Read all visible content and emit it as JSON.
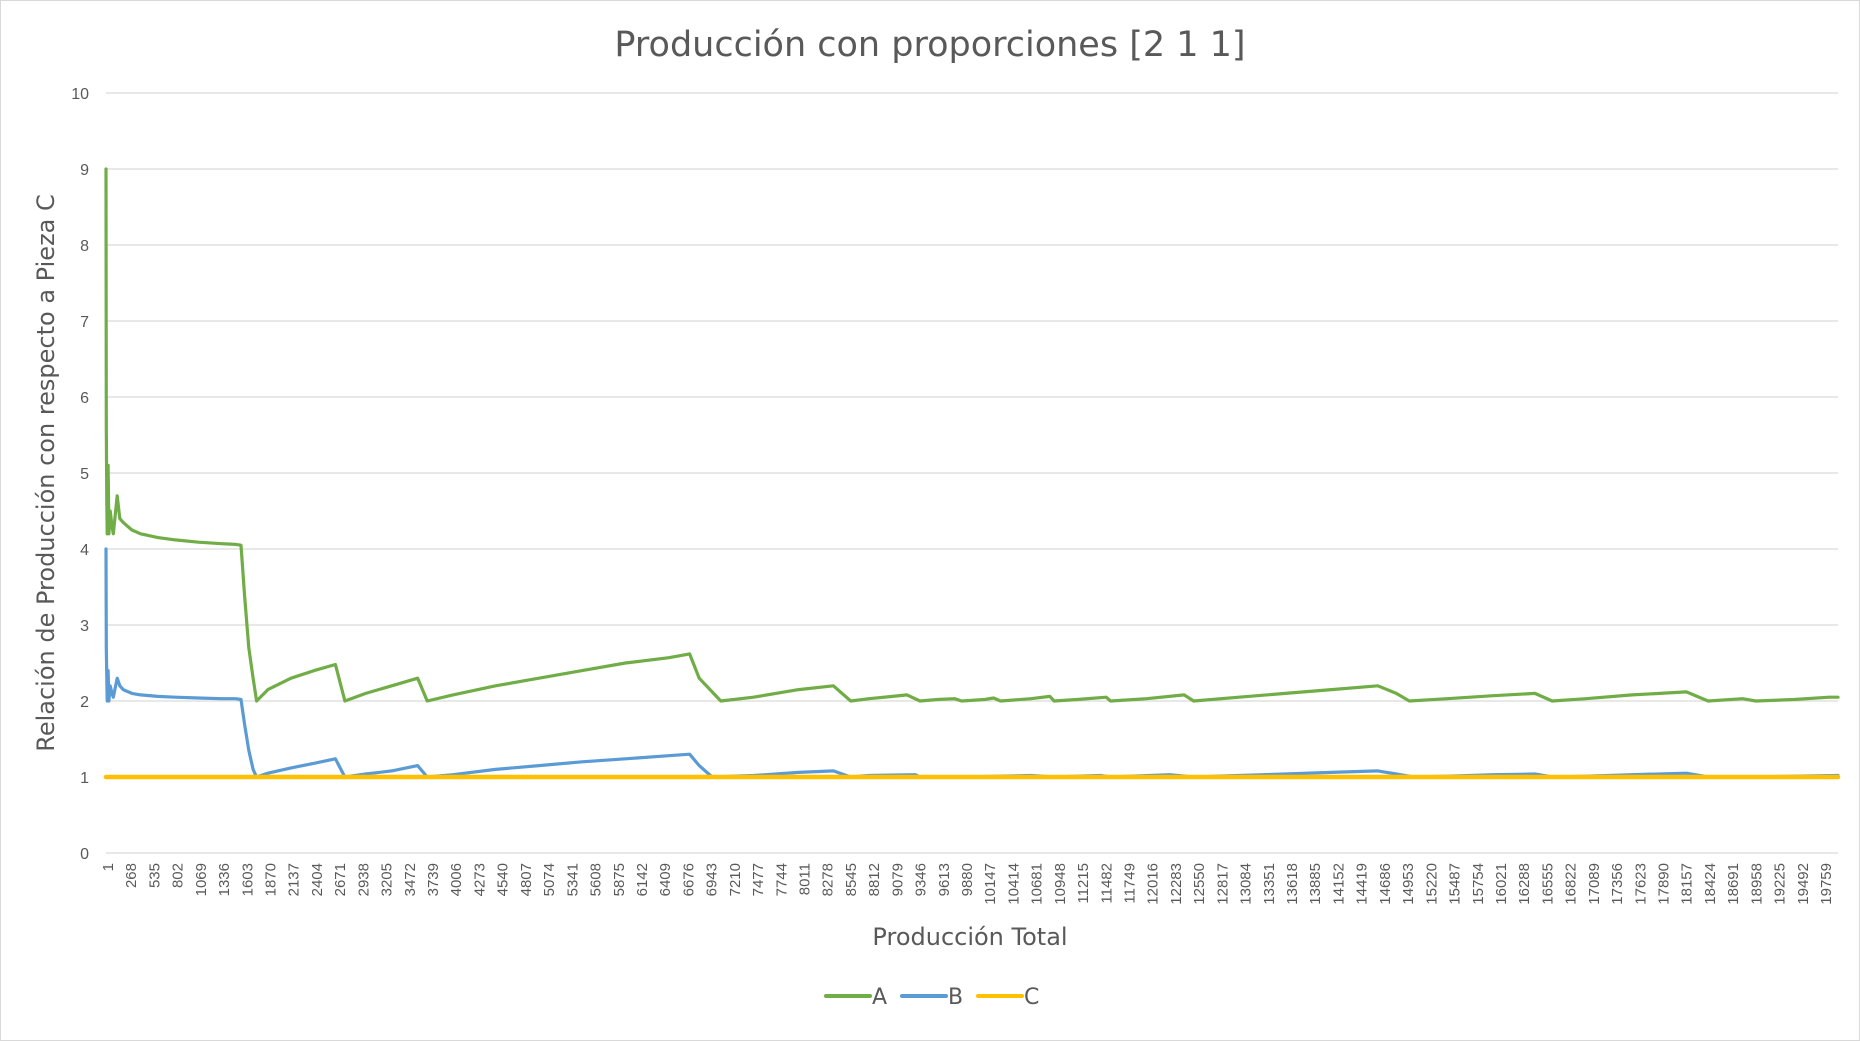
{
  "chart_data": {
    "type": "line",
    "title": "Producción con proporciones [2 1 1]",
    "xlabel": "Producción Total",
    "ylabel": "Relación de Producción con respecto a Pieza C",
    "ylim": [
      0,
      10
    ],
    "yticks": [
      "0",
      "1",
      "2",
      "3",
      "4",
      "5",
      "6",
      "7",
      "8",
      "9",
      "10"
    ],
    "xlim": [
      1,
      20000
    ],
    "xticks": [
      "1",
      "268",
      "535",
      "802",
      "1069",
      "1336",
      "1603",
      "1870",
      "2137",
      "2404",
      "2671",
      "2938",
      "3205",
      "3472",
      "3739",
      "4006",
      "4273",
      "4540",
      "4807",
      "5074",
      "5341",
      "5608",
      "5875",
      "6142",
      "6409",
      "6676",
      "6943",
      "7210",
      "7477",
      "7744",
      "8011",
      "8278",
      "8545",
      "8812",
      "9079",
      "9346",
      "9613",
      "9880",
      "10147",
      "10414",
      "10681",
      "10948",
      "11215",
      "11482",
      "11749",
      "12016",
      "12283",
      "12550",
      "12817",
      "13084",
      "13351",
      "13618",
      "13885",
      "14152",
      "14419",
      "14686",
      "14953",
      "15220",
      "15487",
      "15754",
      "16021",
      "16288",
      "16555",
      "16822",
      "17089",
      "17356",
      "17623",
      "17890",
      "18157",
      "18424",
      "18691",
      "18958",
      "19225",
      "19492",
      "19759"
    ],
    "grid": true,
    "legend_position": "bottom",
    "series": [
      {
        "name": "A",
        "color": "#70ad47",
        "points": [
          [
            1,
            9.0
          ],
          [
            5,
            5.6
          ],
          [
            10,
            4.6
          ],
          [
            15,
            4.2
          ],
          [
            25,
            5.1
          ],
          [
            35,
            4.2
          ],
          [
            50,
            4.5
          ],
          [
            70,
            4.3
          ],
          [
            85,
            4.2
          ],
          [
            130,
            4.7
          ],
          [
            160,
            4.4
          ],
          [
            200,
            4.35
          ],
          [
            300,
            4.25
          ],
          [
            400,
            4.2
          ],
          [
            600,
            4.15
          ],
          [
            800,
            4.12
          ],
          [
            1069,
            4.09
          ],
          [
            1336,
            4.07
          ],
          [
            1500,
            4.06
          ],
          [
            1560,
            4.05
          ],
          [
            1600,
            3.4
          ],
          [
            1650,
            2.7
          ],
          [
            1700,
            2.3
          ],
          [
            1740,
            2.0
          ],
          [
            1870,
            2.15
          ],
          [
            2137,
            2.3
          ],
          [
            2404,
            2.4
          ],
          [
            2650,
            2.48
          ],
          [
            2760,
            2.0
          ],
          [
            3000,
            2.1
          ],
          [
            3300,
            2.2
          ],
          [
            3600,
            2.3
          ],
          [
            3710,
            2.0
          ],
          [
            4006,
            2.08
          ],
          [
            4500,
            2.2
          ],
          [
            5000,
            2.3
          ],
          [
            5500,
            2.4
          ],
          [
            6000,
            2.5
          ],
          [
            6500,
            2.57
          ],
          [
            6740,
            2.62
          ],
          [
            6850,
            2.3
          ],
          [
            7100,
            2.0
          ],
          [
            7477,
            2.05
          ],
          [
            8000,
            2.15
          ],
          [
            8400,
            2.2
          ],
          [
            8600,
            2.0
          ],
          [
            8812,
            2.03
          ],
          [
            9250,
            2.08
          ],
          [
            9400,
            2.0
          ],
          [
            9600,
            2.02
          ],
          [
            9800,
            2.03
          ],
          [
            9880,
            2.0
          ],
          [
            10147,
            2.02
          ],
          [
            10250,
            2.04
          ],
          [
            10330,
            2.0
          ],
          [
            10681,
            2.03
          ],
          [
            10900,
            2.06
          ],
          [
            10948,
            2.0
          ],
          [
            11215,
            2.02
          ],
          [
            11550,
            2.05
          ],
          [
            11600,
            2.0
          ],
          [
            12016,
            2.03
          ],
          [
            12450,
            2.08
          ],
          [
            12560,
            2.0
          ],
          [
            13084,
            2.05
          ],
          [
            13618,
            2.1
          ],
          [
            14152,
            2.15
          ],
          [
            14686,
            2.2
          ],
          [
            14900,
            2.1
          ],
          [
            15050,
            2.0
          ],
          [
            15487,
            2.03
          ],
          [
            16021,
            2.07
          ],
          [
            16500,
            2.1
          ],
          [
            16700,
            2.0
          ],
          [
            17089,
            2.03
          ],
          [
            17623,
            2.08
          ],
          [
            18250,
            2.12
          ],
          [
            18500,
            2.0
          ],
          [
            18900,
            2.03
          ],
          [
            19050,
            2.0
          ],
          [
            19492,
            2.02
          ],
          [
            19900,
            2.05
          ],
          [
            20000,
            2.05
          ]
        ]
      },
      {
        "name": "B",
        "color": "#5b9bd5",
        "points": [
          [
            1,
            4.0
          ],
          [
            5,
            2.7
          ],
          [
            10,
            2.3
          ],
          [
            15,
            2.0
          ],
          [
            25,
            2.4
          ],
          [
            35,
            2.0
          ],
          [
            50,
            2.2
          ],
          [
            70,
            2.1
          ],
          [
            85,
            2.05
          ],
          [
            130,
            2.3
          ],
          [
            160,
            2.2
          ],
          [
            200,
            2.15
          ],
          [
            300,
            2.1
          ],
          [
            400,
            2.08
          ],
          [
            600,
            2.06
          ],
          [
            800,
            2.05
          ],
          [
            1069,
            2.04
          ],
          [
            1336,
            2.03
          ],
          [
            1500,
            2.03
          ],
          [
            1560,
            2.02
          ],
          [
            1600,
            1.7
          ],
          [
            1650,
            1.35
          ],
          [
            1700,
            1.1
          ],
          [
            1740,
            1.0
          ],
          [
            1870,
            1.05
          ],
          [
            2137,
            1.12
          ],
          [
            2404,
            1.18
          ],
          [
            2650,
            1.24
          ],
          [
            2760,
            1.0
          ],
          [
            3000,
            1.04
          ],
          [
            3300,
            1.08
          ],
          [
            3600,
            1.15
          ],
          [
            3710,
            1.0
          ],
          [
            4006,
            1.03
          ],
          [
            4500,
            1.1
          ],
          [
            5000,
            1.15
          ],
          [
            5500,
            1.2
          ],
          [
            6000,
            1.24
          ],
          [
            6500,
            1.28
          ],
          [
            6740,
            1.3
          ],
          [
            6850,
            1.15
          ],
          [
            7000,
            1.0
          ],
          [
            7477,
            1.02
          ],
          [
            8000,
            1.06
          ],
          [
            8400,
            1.08
          ],
          [
            8600,
            1.0
          ],
          [
            8812,
            1.02
          ],
          [
            9346,
            1.03
          ],
          [
            9400,
            1.0
          ],
          [
            9880,
            1.0
          ],
          [
            10681,
            1.02
          ],
          [
            10948,
            1.0
          ],
          [
            11482,
            1.02
          ],
          [
            11600,
            1.0
          ],
          [
            12283,
            1.03
          ],
          [
            12560,
            1.0
          ],
          [
            13084,
            1.02
          ],
          [
            13618,
            1.04
          ],
          [
            14152,
            1.06
          ],
          [
            14686,
            1.08
          ],
          [
            14900,
            1.04
          ],
          [
            15100,
            1.0
          ],
          [
            15487,
            1.01
          ],
          [
            16021,
            1.03
          ],
          [
            16500,
            1.04
          ],
          [
            16700,
            1.0
          ],
          [
            17089,
            1.01
          ],
          [
            17623,
            1.03
          ],
          [
            18250,
            1.05
          ],
          [
            18500,
            1.0
          ],
          [
            19050,
            1.0
          ],
          [
            19492,
            1.01
          ],
          [
            20000,
            1.02
          ]
        ]
      },
      {
        "name": "C",
        "color": "#ffc000",
        "points": [
          [
            1,
            1.0
          ],
          [
            20000,
            1.0
          ]
        ]
      }
    ]
  }
}
